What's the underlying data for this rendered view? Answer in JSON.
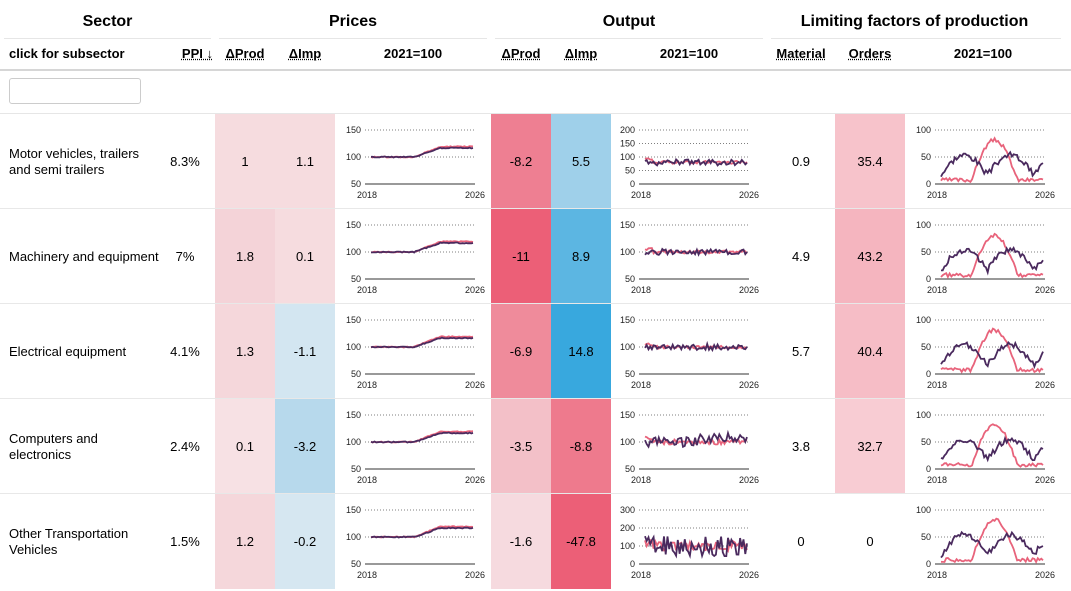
{
  "groups": {
    "sector": "Sector",
    "prices": "Prices",
    "output": "Output",
    "limiting": "Limiting factors of production"
  },
  "columns": {
    "subsector": "click for subsector",
    "ppi": "PPI ↓",
    "prices_dprod": "ΔProd",
    "prices_dimp": "ΔImp",
    "prices_index": "2021=100",
    "output_dprod": "ΔProd",
    "output_dimp": "ΔImp",
    "output_index": "2021=100",
    "material": "Material",
    "orders": "Orders",
    "limiting_index": "2021=100"
  },
  "filter": {
    "value": ""
  },
  "colors": {
    "series_dark": "#4a2a5e",
    "series_pink": "#e8637b"
  },
  "axis_labels": {
    "x_start": "2018",
    "x_end": "2026"
  },
  "rows": [
    {
      "sector": "Motor vehicles, trailers and semi trailers",
      "ppi": "8.3%",
      "p_dprod": "1",
      "p_dprod_bg": "#f6dcdf",
      "p_dimp": "1.1",
      "p_dimp_bg": "#f6dcdf",
      "o_dprod": "-8.2",
      "o_dprod_bg": "#ee7f92",
      "o_dimp": "5.5",
      "o_dimp_bg": "#9fd0ea",
      "material": "0.9",
      "material_bg": "#ffffff",
      "orders": "35.4",
      "orders_bg": "#f7c3cb",
      "price_ticks": [
        "150",
        "100",
        "50"
      ],
      "output_ticks": [
        "200",
        "150",
        "100",
        "50",
        "0"
      ],
      "limit_ticks": [
        "100",
        "50",
        "0"
      ]
    },
    {
      "sector": "Machinery and equipment",
      "ppi": "7%",
      "p_dprod": "1.8",
      "p_dprod_bg": "#f4d3d8",
      "p_dimp": "0.1",
      "p_dimp_bg": "#f6dcdf",
      "o_dprod": "-11",
      "o_dprod_bg": "#ec5f77",
      "o_dimp": "8.9",
      "o_dimp_bg": "#5cb6e2",
      "material": "4.9",
      "material_bg": "#ffffff",
      "orders": "43.2",
      "orders_bg": "#f5b5bf",
      "price_ticks": [
        "150",
        "100",
        "50"
      ],
      "output_ticks": [
        "150",
        "100",
        "50"
      ],
      "limit_ticks": [
        "100",
        "50",
        "0"
      ]
    },
    {
      "sector": "Electrical equipment",
      "ppi": "4.1%",
      "p_dprod": "1.3",
      "p_dprod_bg": "#f5d7db",
      "p_dimp": "-1.1",
      "p_dimp_bg": "#d3e6f1",
      "o_dprod": "-6.9",
      "o_dprod_bg": "#ef8b9b",
      "o_dimp": "14.8",
      "o_dimp_bg": "#38a8de",
      "material": "5.7",
      "material_bg": "#ffffff",
      "orders": "40.4",
      "orders_bg": "#f6bdc6",
      "price_ticks": [
        "150",
        "100",
        "50"
      ],
      "output_ticks": [
        "150",
        "100",
        "50"
      ],
      "limit_ticks": [
        "100",
        "50",
        "0"
      ]
    },
    {
      "sector": "Computers and electronics",
      "ppi": "2.4%",
      "p_dprod": "0.1",
      "p_dprod_bg": "#f7e1e4",
      "p_dimp": "-3.2",
      "p_dimp_bg": "#b7d9ec",
      "o_dprod": "-3.5",
      "o_dprod_bg": "#f3c0c8",
      "o_dimp": "-8.8",
      "o_dimp_bg": "#ee7a8d",
      "material": "3.8",
      "material_bg": "#ffffff",
      "orders": "32.7",
      "orders_bg": "#f8ccd3",
      "price_ticks": [
        "150",
        "100",
        "50"
      ],
      "output_ticks": [
        "150",
        "100",
        "50"
      ],
      "limit_ticks": [
        "100",
        "50",
        "0"
      ]
    },
    {
      "sector": "Other Transportation Vehicles",
      "ppi": "1.5%",
      "p_dprod": "1.2",
      "p_dprod_bg": "#f5d7db",
      "p_dimp": "-0.2",
      "p_dimp_bg": "#d6e7f1",
      "o_dprod": "-1.6",
      "o_dprod_bg": "#f6dadf",
      "o_dimp": "-47.8",
      "o_dimp_bg": "#ec5f77",
      "material": "0",
      "material_bg": "#ffffff",
      "orders": "0",
      "orders_bg": "#ffffff",
      "price_ticks": [
        "150",
        "100",
        "50"
      ],
      "output_ticks": [
        "300",
        "200",
        "100",
        "0"
      ],
      "limit_ticks": [
        "100",
        "50",
        "0"
      ]
    }
  ]
}
